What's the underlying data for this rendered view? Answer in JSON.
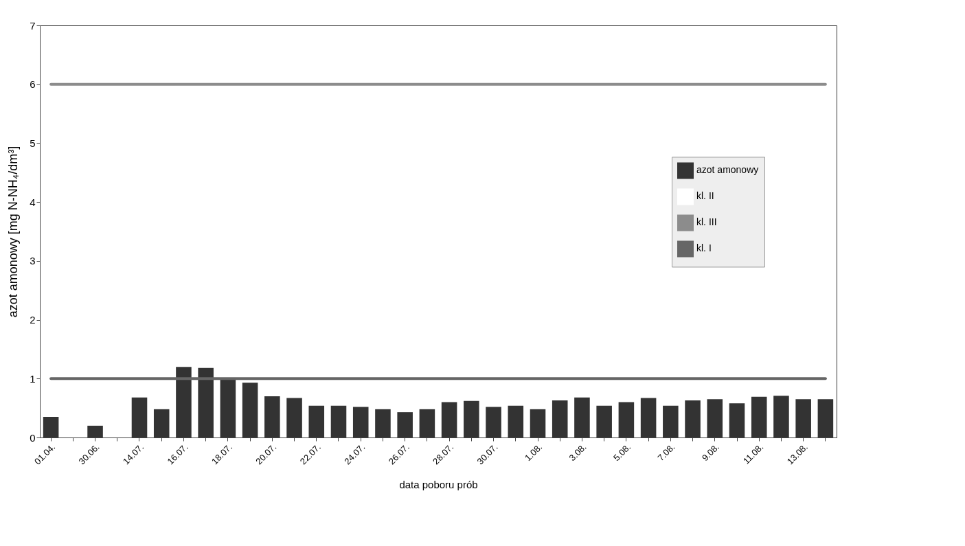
{
  "chart_data": {
    "type": "bar",
    "xlabel": "data poboru prób",
    "ylabel": "azot amonowy [mg N-NH₄/dm³]",
    "categories": [
      "01.04.",
      null,
      "30.06.",
      null,
      "14.07.",
      null,
      "16.07.",
      null,
      "18.07.",
      null,
      "20.07.",
      null,
      "22.07.",
      null,
      "24.07.",
      null,
      "26.07.",
      null,
      "28.07.",
      null,
      "30.07.",
      null,
      "1.08.",
      null,
      "3.08.",
      null,
      "5.08.",
      null,
      "7.08.",
      null,
      "9.08.",
      null,
      "11.08.",
      null,
      "13.08.",
      null
    ],
    "series": [
      {
        "name": "azot amonowy",
        "color": "#333333",
        "values": [
          0.35,
          null,
          0.2,
          null,
          0.68,
          0.48,
          1.2,
          1.18,
          0.98,
          0.93,
          0.7,
          0.67,
          0.54,
          0.54,
          0.52,
          0.48,
          0.43,
          0.48,
          0.6,
          0.62,
          0.52,
          0.54,
          0.48,
          0.63,
          0.68,
          0.54,
          0.6,
          0.67,
          0.54,
          0.63,
          0.65,
          0.58,
          0.69,
          0.71,
          0.65,
          0.65
        ]
      },
      {
        "name": "kl. II",
        "type": "line",
        "color": "#ffffff",
        "values": [
          null,
          null,
          null,
          null,
          null,
          null,
          null,
          null,
          null,
          null,
          null,
          null,
          null,
          null,
          null,
          null,
          null,
          null,
          null,
          null,
          null,
          null,
          null,
          null,
          null,
          null,
          null,
          null,
          null,
          null,
          null,
          null,
          null,
          null,
          null,
          null
        ]
      },
      {
        "name": "kl. III",
        "type": "line",
        "color": "#8c8c8c",
        "values": [
          6,
          6,
          6,
          6,
          6,
          6,
          6,
          6,
          6,
          6,
          6,
          6,
          6,
          6,
          6,
          6,
          6,
          6,
          6,
          6,
          6,
          6,
          6,
          6,
          6,
          6,
          6,
          6,
          6,
          6,
          6,
          6,
          6,
          6,
          6,
          6
        ]
      },
      {
        "name": "kl. I",
        "type": "line",
        "color": "#666666",
        "values": [
          1,
          1,
          1,
          1,
          1,
          1,
          1,
          1,
          1,
          1,
          1,
          1,
          1,
          1,
          1,
          1,
          1,
          1,
          1,
          1,
          1,
          1,
          1,
          1,
          1,
          1,
          1,
          1,
          1,
          1,
          1,
          1,
          1,
          1,
          1,
          1
        ]
      }
    ],
    "ylim": [
      0,
      7
    ],
    "yticks": [
      0,
      1,
      2,
      3,
      4,
      5,
      6,
      7
    ],
    "grid": false,
    "legend": "top right"
  }
}
